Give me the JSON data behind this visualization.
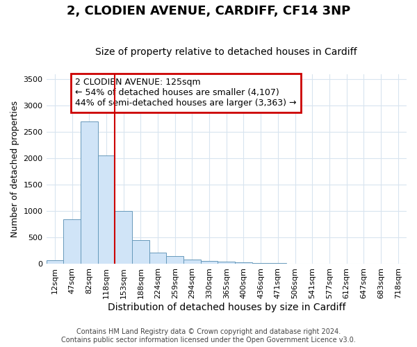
{
  "title_line1": "2, CLODIEN AVENUE, CARDIFF, CF14 3NP",
  "title_line2": "Size of property relative to detached houses in Cardiff",
  "xlabel": "Distribution of detached houses by size in Cardiff",
  "ylabel": "Number of detached properties",
  "categories": [
    "12sqm",
    "47sqm",
    "82sqm",
    "118sqm",
    "153sqm",
    "188sqm",
    "224sqm",
    "259sqm",
    "294sqm",
    "330sqm",
    "365sqm",
    "400sqm",
    "436sqm",
    "471sqm",
    "506sqm",
    "541sqm",
    "577sqm",
    "612sqm",
    "647sqm",
    "683sqm",
    "718sqm"
  ],
  "values": [
    75,
    850,
    2700,
    2060,
    1010,
    450,
    215,
    150,
    80,
    55,
    40,
    30,
    25,
    20,
    0,
    0,
    0,
    0,
    0,
    0,
    0
  ],
  "bar_color": "#d0e4f7",
  "bar_edge_color": "#6699bb",
  "grid_color": "#d8e4ef",
  "vline_x": 3.5,
  "vline_color": "#cc0000",
  "annotation_text": "2 CLODIEN AVENUE: 125sqm\n← 54% of detached houses are smaller (4,107)\n44% of semi-detached houses are larger (3,363) →",
  "annotation_box_color": "#cc0000",
  "ylim": [
    0,
    3600
  ],
  "yticks": [
    0,
    500,
    1000,
    1500,
    2000,
    2500,
    3000,
    3500
  ],
  "footer_line1": "Contains HM Land Registry data © Crown copyright and database right 2024.",
  "footer_line2": "Contains public sector information licensed under the Open Government Licence v3.0.",
  "background_color": "#ffffff",
  "title1_fontsize": 13,
  "title2_fontsize": 10,
  "xlabel_fontsize": 10,
  "ylabel_fontsize": 9,
  "tick_fontsize": 8,
  "annotation_fontsize": 9,
  "footer_fontsize": 7
}
